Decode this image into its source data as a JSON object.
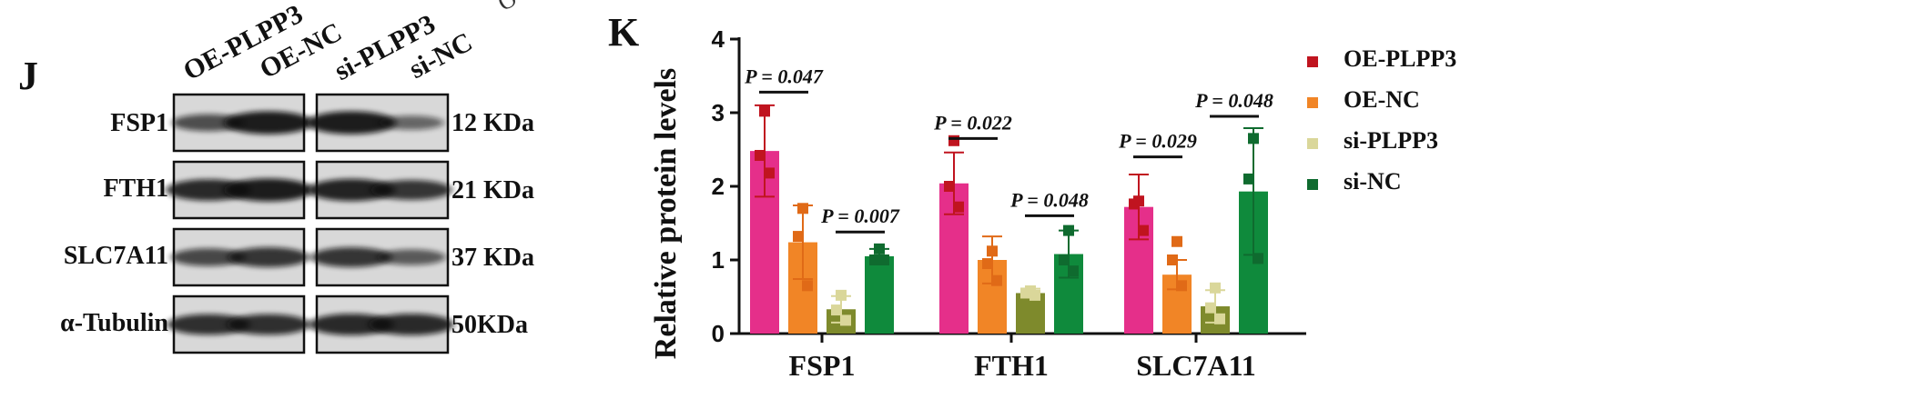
{
  "panel_j": {
    "label": "J",
    "lane_headers": [
      "OE-PLPP3",
      "OE-NC",
      "si-PLPP3",
      "si-NC"
    ],
    "rows": [
      {
        "name": "FSP1",
        "kda": "12 KDa",
        "band": [
          0.55,
          0.95,
          0.95,
          0.35
        ]
      },
      {
        "name": "FTH1",
        "kda": "21 KDa",
        "band": [
          0.85,
          0.95,
          0.9,
          0.75
        ]
      },
      {
        "name": "SLC7A11",
        "kda": "37 KDa",
        "band": [
          0.6,
          0.75,
          0.75,
          0.45
        ]
      },
      {
        "name": "α-Tubulin",
        "kda": "50KDa",
        "band": [
          0.8,
          0.8,
          0.85,
          0.85
        ]
      }
    ]
  },
  "panel_k": {
    "label": "K",
    "top_artifact": "O"
  },
  "chart_data": {
    "type": "bar",
    "title": "",
    "xlabel": "",
    "ylabel": "Relative protein levels",
    "ylim": [
      0,
      4
    ],
    "yticks": [
      "0",
      "1",
      "2",
      "3",
      "4"
    ],
    "categories": [
      "FSP1",
      "FTH1",
      "SLC7A11"
    ],
    "series": [
      {
        "name": "OE-PLPP3",
        "color": "#e52f8a",
        "dot_color": "#c0141f",
        "values": [
          2.48,
          2.04,
          1.72
        ],
        "errors": [
          0.62,
          0.42,
          0.44
        ],
        "points": [
          [
            3.02,
            2.62,
            1.8
          ],
          [
            2.42,
            2.0,
            1.76
          ],
          [
            2.18,
            1.72,
            1.4
          ]
        ]
      },
      {
        "name": "OE-NC",
        "color": "#f18526",
        "dot_color": "#e06a17",
        "values": [
          1.24,
          1.0,
          0.8
        ],
        "errors": [
          0.5,
          0.32,
          0.2
        ],
        "points": [
          [
            1.7,
            1.12,
            1.25
          ],
          [
            1.32,
            0.95,
            1.0
          ],
          [
            0.65,
            0.72,
            0.65
          ]
        ]
      },
      {
        "name": "si-PLPP3",
        "color": "#7e8a2c",
        "dot_color": "#dad79a",
        "values": [
          0.33,
          0.55,
          0.37
        ],
        "errors": [
          0.18,
          0.06,
          0.22
        ],
        "points": [
          [
            0.52,
            0.58,
            0.62
          ],
          [
            0.32,
            0.55,
            0.35
          ],
          [
            0.18,
            0.52,
            0.2
          ]
        ]
      },
      {
        "name": "si-NC",
        "color": "#0f8a3c",
        "dot_color": "#0f6b2f",
        "values": [
          1.05,
          1.08,
          1.93
        ],
        "errors": [
          0.1,
          0.32,
          0.86
        ],
        "points": [
          [
            1.15,
            1.4,
            2.65
          ],
          [
            1.0,
            1.0,
            2.1
          ],
          [
            1.0,
            0.85,
            1.02
          ]
        ]
      }
    ],
    "annotations": [
      {
        "text": "P = 0.047",
        "category": "FSP1",
        "from": 0,
        "to": 1,
        "y": 3.28
      },
      {
        "text": "P = 0.007",
        "category": "FSP1",
        "from": 2,
        "to": 3,
        "y": 1.38
      },
      {
        "text": "P = 0.022",
        "category": "FTH1",
        "from": 0,
        "to": 1,
        "y": 2.65
      },
      {
        "text": "P = 0.048",
        "category": "FTH1",
        "from": 2,
        "to": 3,
        "y": 1.6
      },
      {
        "text": "P = 0.029",
        "category": "SLC7A11",
        "from": 0,
        "to": 1,
        "y": 2.4
      },
      {
        "text": "P = 0.048",
        "category": "SLC7A11",
        "from": 2,
        "to": 3,
        "y": 2.95
      }
    ]
  }
}
